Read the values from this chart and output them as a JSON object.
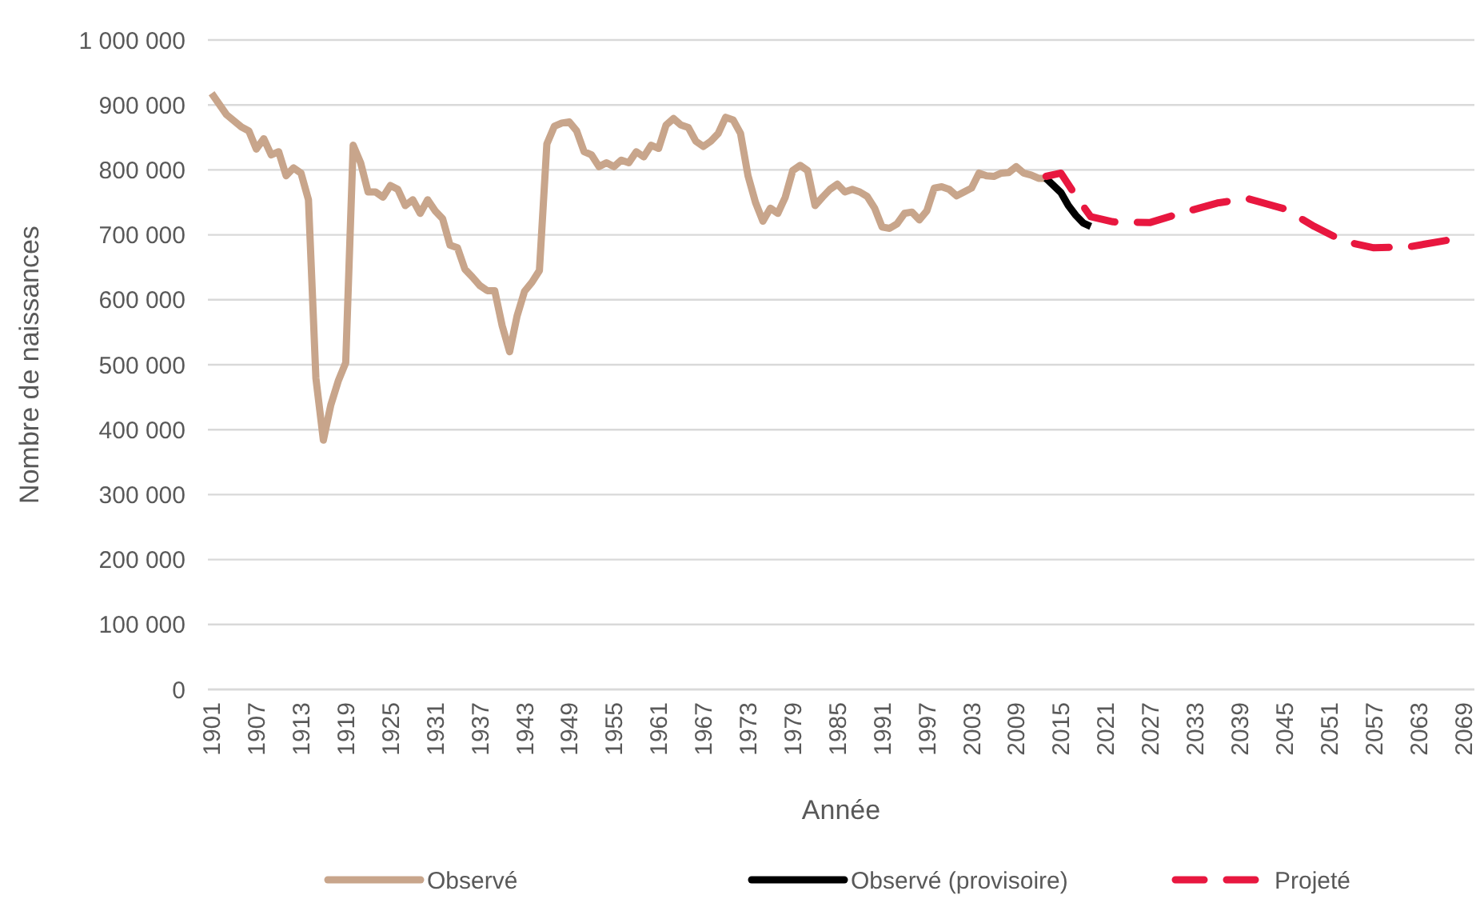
{
  "chart_data": {
    "type": "line",
    "xlabel": "Année",
    "ylabel": "Nombre de naissances",
    "xlim": [
      1900.5,
      2070.5
    ],
    "xticks": [
      1901,
      1907,
      1913,
      1919,
      1925,
      1931,
      1937,
      1943,
      1949,
      1955,
      1961,
      1967,
      1973,
      1979,
      1985,
      1991,
      1997,
      2003,
      2009,
      2015,
      2021,
      2027,
      2033,
      2039,
      2045,
      2051,
      2057,
      2063,
      2069
    ],
    "ylim": [
      0,
      1000000
    ],
    "yticks": [
      {
        "value": 0,
        "label": "0"
      },
      {
        "value": 100000,
        "label": "100 000"
      },
      {
        "value": 200000,
        "label": "200 000"
      },
      {
        "value": 300000,
        "label": "300 000"
      },
      {
        "value": 400000,
        "label": "400 000"
      },
      {
        "value": 500000,
        "label": "500 000"
      },
      {
        "value": 600000,
        "label": "600 000"
      },
      {
        "value": 700000,
        "label": "700 000"
      },
      {
        "value": 800000,
        "label": "800 000"
      },
      {
        "value": 900000,
        "label": "900 000"
      },
      {
        "value": 1000000,
        "label": "1 000 000"
      }
    ],
    "grid": "y",
    "legend": "bottom",
    "series": [
      {
        "name": "Observé",
        "color": "#c8a58b",
        "line_style": "solid",
        "x": [
          1901,
          1903,
          1905,
          1906,
          1907,
          1908,
          1909,
          1910,
          1911,
          1912,
          1913,
          1914,
          1915,
          1916,
          1917,
          1918,
          1919,
          1920,
          1921,
          1922,
          1923,
          1924,
          1925,
          1926,
          1927,
          1928,
          1929,
          1930,
          1931,
          1932,
          1933,
          1934,
          1935,
          1936,
          1937,
          1938,
          1939,
          1940,
          1941,
          1942,
          1943,
          1944,
          1945,
          1946,
          1947,
          1948,
          1949,
          1950,
          1951,
          1952,
          1953,
          1954,
          1955,
          1956,
          1957,
          1958,
          1959,
          1960,
          1961,
          1962,
          1963,
          1964,
          1965,
          1966,
          1967,
          1968,
          1969,
          1970,
          1971,
          1972,
          1973,
          1974,
          1975,
          1976,
          1977,
          1978,
          1979,
          1980,
          1981,
          1982,
          1983,
          1984,
          1985,
          1986,
          1987,
          1988,
          1989,
          1990,
          1991,
          1992,
          1993,
          1994,
          1995,
          1996,
          1997,
          1998,
          1999,
          2000,
          2001,
          2002,
          2003,
          2004,
          2005,
          2006,
          2007,
          2008,
          2009,
          2010,
          2011,
          2012,
          2013
        ],
        "values": [
          918000,
          885000,
          866000,
          860000,
          832000,
          848000,
          823000,
          828000,
          791000,
          803000,
          795000,
          754000,
          479000,
          384000,
          438000,
          475000,
          503000,
          838000,
          811000,
          766000,
          766000,
          758000,
          776000,
          770000,
          745000,
          754000,
          733000,
          754000,
          737000,
          725000,
          684000,
          680000,
          647000,
          635000,
          622000,
          614000,
          614000,
          560000,
          520000,
          575000,
          613000,
          627000,
          645000,
          840000,
          867000,
          872000,
          874000,
          860000,
          828000,
          823000,
          805000,
          811000,
          805000,
          815000,
          811000,
          828000,
          820000,
          838000,
          833000,
          869000,
          879000,
          869000,
          865000,
          844000,
          836000,
          844000,
          856000,
          881000,
          877000,
          856000,
          791000,
          750000,
          721000,
          741000,
          733000,
          758000,
          799000,
          807000,
          799000,
          745000,
          758000,
          770000,
          778000,
          766000,
          770000,
          766000,
          759000,
          741000,
          712000,
          710000,
          717000,
          733000,
          735000,
          723000,
          737000,
          772000,
          774000,
          770000,
          760000,
          766000,
          772000,
          795000,
          791000,
          790000,
          795000,
          796000,
          805000,
          795000,
          792000,
          787000,
          787000
        ]
      },
      {
        "name": "Observé (provisoire)",
        "color": "#000000",
        "line_style": "solid",
        "x": [
          2013,
          2015,
          2016,
          2017,
          2018,
          2019
        ],
        "values": [
          787000,
          765000,
          745000,
          730000,
          718000,
          713000
        ]
      },
      {
        "name": "Projeté",
        "color": "#e8173f",
        "line_style": "dashed",
        "x": [
          2013,
          2015,
          2017,
          2019,
          2022,
          2027,
          2031,
          2036,
          2040,
          2045,
          2049,
          2053,
          2057,
          2062,
          2067
        ],
        "values": [
          790000,
          795000,
          760000,
          728000,
          720000,
          719000,
          733000,
          749000,
          756000,
          740000,
          713000,
          690000,
          680000,
          682000,
          692000
        ]
      }
    ]
  }
}
